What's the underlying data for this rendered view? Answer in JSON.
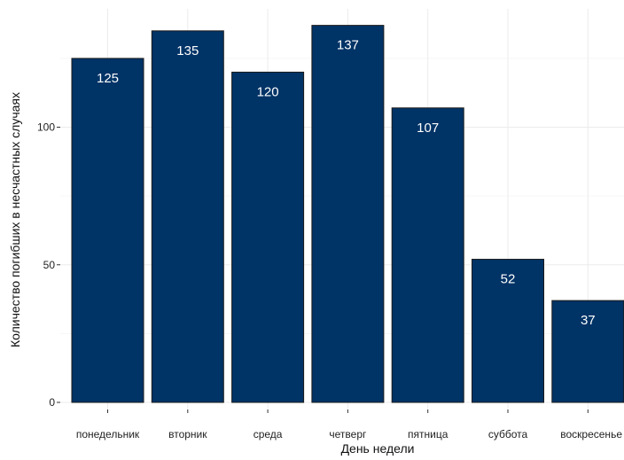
{
  "chart_data": {
    "type": "bar",
    "categories": [
      "понедельник",
      "вторник",
      "среда",
      "четверг",
      "пятница",
      "суббота",
      "воскресенье"
    ],
    "values": [
      125,
      135,
      120,
      137,
      107,
      52,
      37
    ],
    "data_labels": [
      "125",
      "135",
      "120",
      "137",
      "107",
      "52",
      "37"
    ],
    "xlabel": "День недели",
    "ylabel": "Количество погибших в несчастных случаях",
    "ylim": [
      0,
      145
    ],
    "yticks": [
      0,
      50,
      100
    ],
    "ytick_labels": [
      "0",
      "50",
      "100"
    ],
    "grid": true,
    "legend": "none",
    "colors": {
      "bar_fill": "#003366",
      "bar_stroke": "#1a1a1a",
      "label_text": "#ffffff",
      "grid": "#ebebeb",
      "background": "#ffffff"
    }
  }
}
